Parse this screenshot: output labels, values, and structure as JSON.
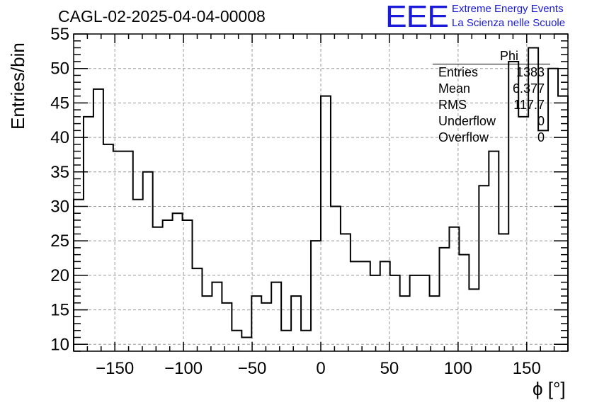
{
  "header": {
    "title": "CAGL-02-2025-04-04-00008",
    "logo_text": "EEE",
    "logo_line1": "Extreme Energy Events",
    "logo_line2": "La Scienza nelle Scuole"
  },
  "stats_box": {
    "name": "Phi",
    "rows": [
      {
        "label": "Entries",
        "value": "1383"
      },
      {
        "label": "Mean",
        "value": "6.377"
      },
      {
        "label": "RMS",
        "value": "117.7"
      },
      {
        "label": "Underflow",
        "value": "0"
      },
      {
        "label": "Overflow",
        "value": "0"
      }
    ]
  },
  "colors": {
    "logo": "#1a1adb",
    "line": "#000000",
    "grid": "#9a9a9a"
  },
  "chart_data": {
    "type": "histogram",
    "xlabel": "ϕ [°]",
    "ylabel": "Entries/bin",
    "xlim": [
      -180,
      180
    ],
    "ylim": [
      9,
      55
    ],
    "bin_width": 7.2,
    "grid": true,
    "x_ticks": [
      -150,
      -100,
      -50,
      0,
      50,
      100,
      150
    ],
    "y_ticks": [
      10,
      15,
      20,
      25,
      30,
      35,
      40,
      45,
      50,
      55
    ],
    "values": [
      31,
      43,
      47,
      39,
      38,
      38,
      31,
      35,
      27,
      28,
      29,
      28,
      21,
      17,
      19,
      16,
      12,
      11,
      17,
      16,
      19,
      12,
      17,
      12,
      25,
      46,
      30,
      26,
      22,
      22,
      20,
      22,
      20,
      17,
      20,
      20,
      17,
      24,
      27,
      23,
      18,
      33,
      38,
      26,
      51,
      43,
      53,
      41,
      50,
      46
    ]
  }
}
